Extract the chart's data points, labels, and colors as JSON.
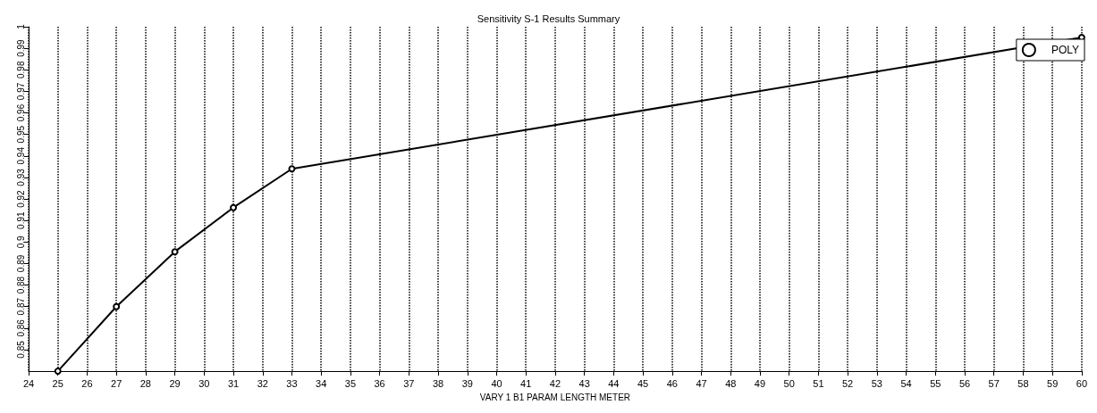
{
  "chart_data": {
    "type": "line",
    "title": "Sensitivity S-1 Results Summary",
    "xlabel": "VARY 1 B1 PARAM LENGTH METER",
    "x": [
      25,
      27,
      29,
      31,
      33,
      60
    ],
    "series": [
      {
        "name": "POLY",
        "color": "#000000",
        "values": [
          0.84,
          0.87,
          0.8955,
          0.916,
          0.934,
          0.995
        ]
      }
    ],
    "xlim": [
      24,
      60
    ],
    "xticks": [
      24,
      25,
      26,
      27,
      28,
      29,
      30,
      31,
      32,
      33,
      34,
      35,
      36,
      37,
      38,
      39,
      40,
      41,
      42,
      43,
      44,
      45,
      46,
      47,
      48,
      49,
      50,
      51,
      52,
      53,
      54,
      55,
      56,
      57,
      58,
      59,
      60
    ],
    "ylim": [
      0.84,
      1
    ],
    "yticks": [
      0.85,
      0.86,
      0.87,
      0.88,
      0.89,
      0.9,
      0.91,
      0.92,
      0.93,
      0.94,
      0.95,
      0.96,
      0.97,
      0.98,
      0.99,
      1
    ],
    "grid": "x",
    "legend": "top right",
    "marker": "circle",
    "line_style": "solid"
  }
}
